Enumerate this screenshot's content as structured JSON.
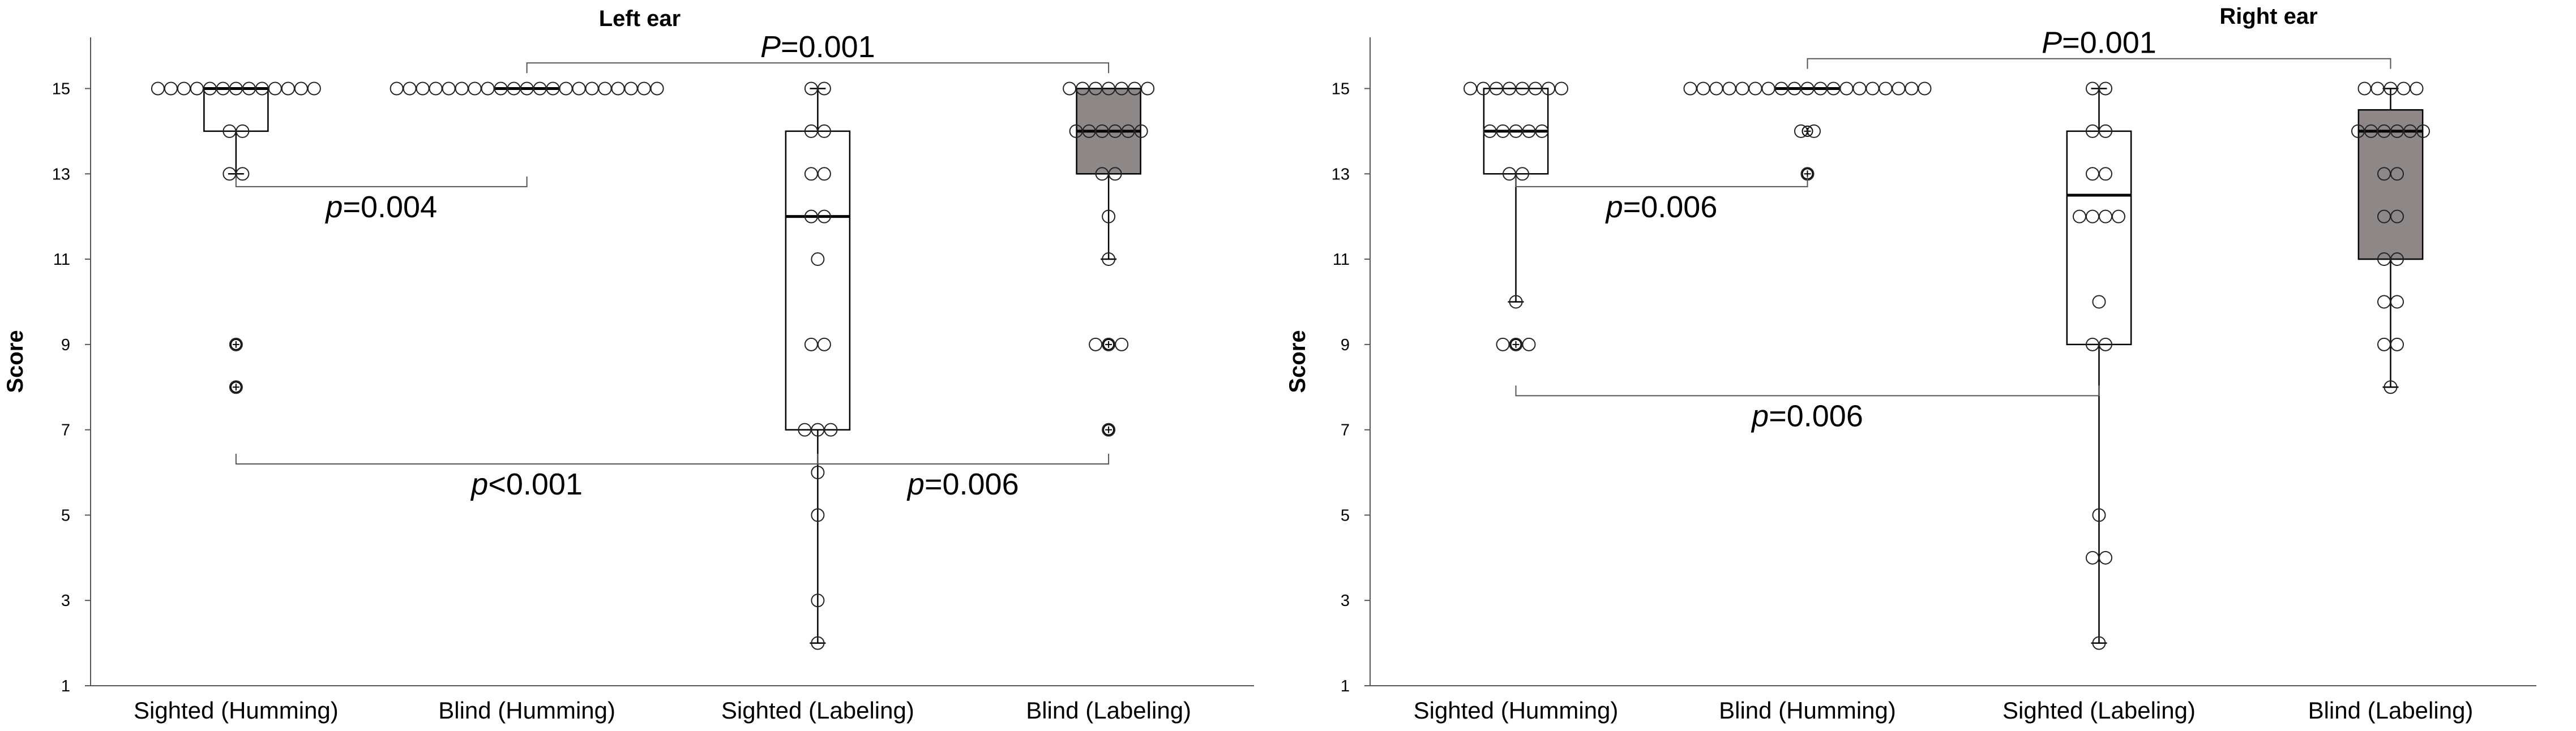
{
  "chart_data": [
    {
      "type": "box",
      "title": "Left ear",
      "ylabel": "Score",
      "xlabel": "",
      "ylim": [
        1,
        16.2
      ],
      "yticks": [
        1,
        3,
        5,
        7,
        9,
        11,
        13,
        15
      ],
      "grid": false,
      "legend": "none",
      "categories": [
        "Sighted (Humming)",
        "Blind (Humming)",
        "Sighted (Labeling)",
        "Blind (Labeling)"
      ],
      "boxes": [
        {
          "category": "Sighted (Humming)",
          "fill": "#ffffff",
          "q1": 14,
          "median": 15,
          "q3": 15,
          "whisker_low": 13,
          "whisker_high": 15,
          "outliers": [
            9,
            8
          ]
        },
        {
          "category": "Blind (Humming)",
          "fill": "#ffffff",
          "q1": 15,
          "median": 15,
          "q3": 15,
          "whisker_low": 15,
          "whisker_high": 15,
          "outliers": []
        },
        {
          "category": "Sighted (Labeling)",
          "fill": "#ffffff",
          "q1": 7,
          "median": 12,
          "q3": 14,
          "whisker_low": 2,
          "whisker_high": 15,
          "outliers": []
        },
        {
          "category": "Blind (Labeling)",
          "fill": "#8e8787",
          "q1": 13,
          "median": 14,
          "q3": 15,
          "whisker_low": 11,
          "whisker_high": 15,
          "outliers": [
            9,
            7
          ]
        }
      ],
      "points": [
        [
          15,
          15,
          15,
          15,
          15,
          15,
          15,
          15,
          15,
          15,
          15,
          15,
          15,
          14,
          14,
          13,
          13,
          9,
          8
        ],
        [
          15,
          15,
          15,
          15,
          15,
          15,
          15,
          15,
          15,
          15,
          15,
          15,
          15,
          15,
          15,
          15,
          15,
          15,
          15,
          15,
          15
        ],
        [
          15,
          15,
          14,
          14,
          13,
          13,
          12,
          12,
          11,
          9,
          9,
          7,
          7,
          7,
          6,
          5,
          3,
          2
        ],
        [
          15,
          15,
          15,
          15,
          15,
          15,
          15,
          14,
          14,
          14,
          14,
          14,
          14,
          13,
          13,
          12,
          11,
          9,
          9,
          9,
          7
        ]
      ],
      "annotations": [
        {
          "text": "P=0.001",
          "pair": [
            2,
            4
          ],
          "y": 15.6
        },
        {
          "text": "p=0.004",
          "pair": [
            1,
            2
          ],
          "y": 12.7
        },
        {
          "text": "p<0.001",
          "pair": [
            1,
            3
          ],
          "y": 6.2
        },
        {
          "text": "p=0.006",
          "pair": [
            3,
            4
          ],
          "y": 6.2
        }
      ]
    },
    {
      "type": "box",
      "title": "Right ear",
      "ylabel": "Score",
      "xlabel": "",
      "ylim": [
        1,
        16.2
      ],
      "yticks": [
        1,
        3,
        5,
        7,
        9,
        11,
        13,
        15
      ],
      "grid": false,
      "legend": "none",
      "categories": [
        "Sighted (Humming)",
        "Blind (Humming)",
        "Sighted (Labeling)",
        "Blind (Labeling)"
      ],
      "boxes": [
        {
          "category": "Sighted (Humming)",
          "fill": "#ffffff",
          "q1": 13,
          "median": 14,
          "q3": 15,
          "whisker_low": 10,
          "whisker_high": 15,
          "outliers": [
            9
          ]
        },
        {
          "category": "Blind (Humming)",
          "fill": "#ffffff",
          "q1": 15,
          "median": 15,
          "q3": 15,
          "whisker_low": 15,
          "whisker_high": 15,
          "outliers": [
            14,
            13
          ]
        },
        {
          "category": "Sighted (Labeling)",
          "fill": "#ffffff",
          "q1": 9,
          "median": 12.5,
          "q3": 14,
          "whisker_low": 2,
          "whisker_high": 15,
          "outliers": []
        },
        {
          "category": "Blind (Labeling)",
          "fill": "#8e8787",
          "q1": 11,
          "median": 14,
          "q3": 14.5,
          "whisker_low": 8,
          "whisker_high": 15,
          "outliers": []
        }
      ],
      "points": [
        [
          15,
          15,
          15,
          15,
          15,
          15,
          15,
          15,
          14,
          14,
          14,
          14,
          14,
          13,
          13,
          10,
          9,
          9,
          9
        ],
        [
          15,
          15,
          15,
          15,
          15,
          15,
          15,
          15,
          15,
          15,
          15,
          15,
          15,
          15,
          15,
          15,
          15,
          15,
          15,
          14,
          14,
          13
        ],
        [
          15,
          15,
          14,
          14,
          13,
          13,
          12,
          12,
          12,
          12,
          10,
          9,
          9,
          5,
          4,
          4,
          2
        ],
        [
          15,
          15,
          15,
          15,
          15,
          14,
          14,
          14,
          14,
          14,
          14,
          13,
          13,
          12,
          12,
          11,
          11,
          10,
          10,
          9,
          9,
          8
        ]
      ],
      "annotations": [
        {
          "text": "P=0.001",
          "pair": [
            2,
            4
          ],
          "y": 15.7
        },
        {
          "text": "p=0.006",
          "pair": [
            1,
            2
          ],
          "y": 12.7
        },
        {
          "text": "p=0.006",
          "pair": [
            1,
            3
          ],
          "y": 7.8
        }
      ]
    }
  ]
}
